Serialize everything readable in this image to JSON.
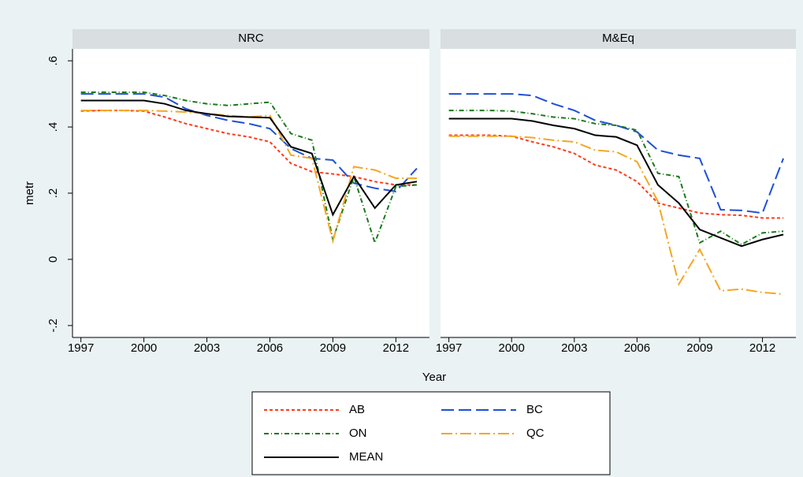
{
  "axis_titles": {
    "x": "Year",
    "y": "metr"
  },
  "legend": {
    "position": "bottom",
    "columns": 2
  },
  "chart_data": [
    {
      "type": "line",
      "title": "NRC",
      "x": [
        1997,
        1998,
        1999,
        2000,
        2001,
        2002,
        2003,
        2004,
        2005,
        2006,
        2007,
        2008,
        2009,
        2010,
        2011,
        2012,
        2013
      ],
      "xlim": [
        1996.6,
        2013.6
      ],
      "xticks": [
        1997,
        2000,
        2003,
        2006,
        2009,
        2012
      ],
      "ylim": [
        -0.236,
        0.636
      ],
      "yticks": [
        {
          "value": -0.2,
          "label": "-.2"
        },
        0,
        {
          "value": 0.2,
          "label": ".2"
        },
        {
          "value": 0.4,
          "label": ".4"
        },
        {
          "value": 0.6,
          "label": ".6"
        }
      ],
      "series": [
        {
          "name": "AB",
          "color": "#ff3a1a",
          "dash": "4 3",
          "values": [
            0.448,
            0.45,
            0.45,
            0.448,
            0.43,
            0.41,
            0.395,
            0.38,
            0.37,
            0.355,
            0.29,
            0.265,
            0.258,
            0.25,
            0.235,
            0.225,
            0.225
          ]
        },
        {
          "name": "BC",
          "color": "#1e4fd6",
          "dash": "16 6",
          "values": [
            0.5,
            0.5,
            0.5,
            0.5,
            0.49,
            0.455,
            0.435,
            0.42,
            0.41,
            0.395,
            0.335,
            0.305,
            0.3,
            0.23,
            0.215,
            0.205,
            0.275
          ]
        },
        {
          "name": "ON",
          "color": "#1a7a1a",
          "dash": "6 3 1 3",
          "values": [
            0.505,
            0.505,
            0.505,
            0.505,
            0.495,
            0.48,
            0.47,
            0.465,
            0.47,
            0.475,
            0.38,
            0.36,
            0.06,
            0.25,
            0.05,
            0.22,
            0.225
          ]
        },
        {
          "name": "QC",
          "color": "#f5a623",
          "dash": "14 4 2 4",
          "values": [
            0.45,
            0.45,
            0.45,
            0.45,
            0.448,
            0.445,
            0.44,
            0.435,
            0.43,
            0.435,
            0.315,
            0.305,
            0.055,
            0.28,
            0.27,
            0.245,
            0.245
          ]
        },
        {
          "name": "MEAN",
          "color": "#000000",
          "dash": "",
          "values": [
            0.48,
            0.48,
            0.48,
            0.48,
            0.47,
            0.45,
            0.44,
            0.432,
            0.43,
            0.428,
            0.34,
            0.32,
            0.135,
            0.25,
            0.155,
            0.225,
            0.235
          ]
        }
      ]
    },
    {
      "type": "line",
      "title": "M&Eq",
      "x": [
        1997,
        1998,
        1999,
        2000,
        2001,
        2002,
        2003,
        2004,
        2005,
        2006,
        2007,
        2008,
        2009,
        2010,
        2011,
        2012,
        2013
      ],
      "xlim": [
        1996.6,
        2013.6
      ],
      "xticks": [
        1997,
        2000,
        2003,
        2006,
        2009,
        2012
      ],
      "ylim": [
        -0.236,
        0.636
      ],
      "yticks": [
        {
          "value": -0.2,
          "label": "-.2"
        },
        0,
        {
          "value": 0.2,
          "label": ".2"
        },
        {
          "value": 0.4,
          "label": ".4"
        },
        {
          "value": 0.6,
          "label": ".6"
        }
      ],
      "series": [
        {
          "name": "AB",
          "color": "#ff3a1a",
          "dash": "4 3",
          "values": [
            0.375,
            0.375,
            0.375,
            0.372,
            0.355,
            0.34,
            0.32,
            0.285,
            0.27,
            0.235,
            0.17,
            0.155,
            0.14,
            0.135,
            0.133,
            0.125,
            0.125
          ]
        },
        {
          "name": "BC",
          "color": "#1e4fd6",
          "dash": "16 6",
          "values": [
            0.5,
            0.5,
            0.5,
            0.5,
            0.495,
            0.47,
            0.45,
            0.42,
            0.405,
            0.385,
            0.33,
            0.315,
            0.305,
            0.15,
            0.148,
            0.14,
            0.305
          ]
        },
        {
          "name": "ON",
          "color": "#1a7a1a",
          "dash": "6 3 1 3",
          "values": [
            0.45,
            0.45,
            0.45,
            0.448,
            0.44,
            0.43,
            0.425,
            0.41,
            0.405,
            0.39,
            0.26,
            0.25,
            0.05,
            0.085,
            0.045,
            0.08,
            0.085
          ]
        },
        {
          "name": "QC",
          "color": "#f5a623",
          "dash": "14 4 2 4",
          "values": [
            0.372,
            0.372,
            0.372,
            0.372,
            0.368,
            0.36,
            0.355,
            0.33,
            0.325,
            0.295,
            0.175,
            -0.075,
            0.03,
            -0.095,
            -0.09,
            -0.1,
            -0.105
          ]
        },
        {
          "name": "MEAN",
          "color": "#000000",
          "dash": "",
          "values": [
            0.425,
            0.425,
            0.425,
            0.425,
            0.418,
            0.405,
            0.395,
            0.375,
            0.37,
            0.345,
            0.225,
            0.17,
            0.09,
            0.065,
            0.04,
            0.06,
            0.075
          ]
        }
      ]
    }
  ]
}
